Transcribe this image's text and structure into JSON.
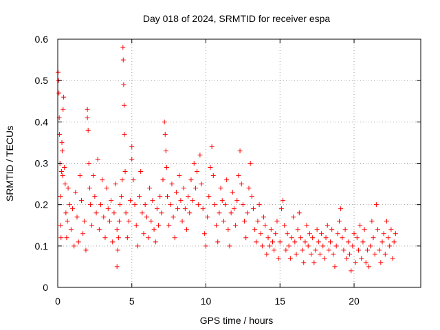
{
  "chart_data": {
    "type": "scatter",
    "title": "Day 018 of 2024, SRMTID for receiver espa",
    "xlabel": "GPS time / hours",
    "ylabel": "SRMTID / TECUs",
    "xlim": [
      0,
      24.5
    ],
    "ylim": [
      0,
      0.6
    ],
    "xticks": [
      0,
      5,
      10,
      15,
      20
    ],
    "yticks": [
      0,
      0.1,
      0.2,
      0.3,
      0.4,
      0.5,
      0.6
    ],
    "xtick_labels": [
      "0",
      "5",
      "10",
      "15",
      "20"
    ],
    "ytick_labels": [
      "0",
      "0.1",
      "0.2",
      "0.3",
      "0.4",
      "0.5",
      "0.6"
    ],
    "grid": true,
    "marker": "+",
    "marker_color": "#ff0000",
    "series": [
      {
        "name": "SRMTID",
        "color": "#ff0000",
        "x": [
          0.02,
          0.05,
          0.08,
          0.1,
          0.12,
          0.15,
          0.18,
          0.2,
          0.22,
          0.25,
          0.28,
          0.3,
          0.33,
          0.36,
          0.4,
          0.45,
          0.5,
          0.55,
          0.6,
          0.65,
          0.7,
          0.8,
          0.9,
          1.0,
          1.1,
          1.2,
          1.3,
          1.4,
          1.5,
          1.6,
          1.7,
          1.8,
          1.9,
          2.0,
          2.0,
          2.05,
          2.1,
          2.15,
          2.2,
          2.3,
          2.4,
          2.5,
          2.6,
          2.7,
          2.8,
          2.9,
          3.0,
          3.1,
          3.2,
          3.3,
          3.4,
          3.5,
          3.6,
          3.7,
          3.8,
          3.9,
          4.0,
          4.0,
          4.05,
          4.1,
          4.15,
          4.2,
          4.3,
          4.35,
          4.4,
          4.42,
          4.45,
          4.48,
          4.5,
          4.55,
          4.6,
          4.7,
          4.8,
          4.9,
          5.0,
          5.0,
          5.1,
          5.2,
          5.3,
          5.4,
          5.5,
          5.6,
          5.7,
          5.8,
          5.9,
          6.0,
          6.1,
          6.2,
          6.3,
          6.4,
          6.5,
          6.6,
          6.7,
          6.8,
          6.9,
          7.0,
          7.1,
          7.2,
          7.25,
          7.3,
          7.35,
          7.4,
          7.5,
          7.6,
          7.7,
          7.8,
          7.9,
          8.0,
          8.1,
          8.2,
          8.3,
          8.4,
          8.5,
          8.6,
          8.7,
          8.8,
          8.9,
          9.0,
          9.1,
          9.2,
          9.3,
          9.4,
          9.5,
          9.6,
          9.7,
          9.8,
          9.9,
          10.0,
          10.1,
          10.2,
          10.3,
          10.4,
          10.5,
          10.6,
          10.7,
          10.8,
          10.9,
          11.0,
          11.1,
          11.2,
          11.3,
          11.4,
          11.5,
          11.6,
          11.7,
          11.8,
          11.9,
          12.0,
          12.1,
          12.2,
          12.3,
          12.4,
          12.5,
          12.6,
          12.7,
          12.8,
          12.9,
          13.0,
          13.1,
          13.2,
          13.3,
          13.4,
          13.5,
          13.6,
          13.7,
          13.8,
          13.9,
          14.0,
          14.1,
          14.2,
          14.3,
          14.4,
          14.5,
          14.6,
          14.7,
          14.8,
          14.9,
          15.0,
          15.1,
          15.2,
          15.3,
          15.4,
          15.5,
          15.6,
          15.7,
          15.8,
          15.9,
          16.0,
          16.1,
          16.2,
          16.3,
          16.4,
          16.5,
          16.6,
          16.7,
          16.8,
          16.9,
          17.0,
          17.1,
          17.2,
          17.3,
          17.4,
          17.5,
          17.6,
          17.7,
          17.8,
          17.9,
          18.0,
          18.1,
          18.2,
          18.3,
          18.4,
          18.5,
          18.6,
          18.7,
          18.8,
          18.9,
          19.0,
          19.1,
          19.2,
          19.3,
          19.4,
          19.5,
          19.6,
          19.7,
          19.8,
          19.9,
          20.0,
          20.1,
          20.2,
          20.3,
          20.4,
          20.5,
          20.6,
          20.7,
          20.8,
          20.9,
          21.0,
          21.1,
          21.2,
          21.3,
          21.4,
          21.5,
          21.6,
          21.7,
          21.8,
          21.9,
          22.0,
          22.1,
          22.2,
          22.3,
          22.4,
          22.5,
          22.6,
          22.7,
          22.8
        ],
        "y": [
          0.52,
          0.5,
          0.47,
          0.41,
          0.37,
          0.3,
          0.22,
          0.15,
          0.12,
          0.28,
          0.35,
          0.33,
          0.27,
          0.43,
          0.46,
          0.29,
          0.25,
          0.18,
          0.12,
          0.16,
          0.24,
          0.2,
          0.14,
          0.19,
          0.1,
          0.23,
          0.17,
          0.11,
          0.27,
          0.21,
          0.13,
          0.16,
          0.09,
          0.43,
          0.41,
          0.38,
          0.3,
          0.24,
          0.2,
          0.15,
          0.27,
          0.22,
          0.18,
          0.31,
          0.14,
          0.2,
          0.26,
          0.17,
          0.12,
          0.24,
          0.19,
          0.16,
          0.21,
          0.11,
          0.18,
          0.25,
          0.14,
          0.05,
          0.09,
          0.12,
          0.16,
          0.2,
          0.22,
          0.26,
          0.58,
          0.55,
          0.49,
          0.44,
          0.37,
          0.28,
          0.18,
          0.12,
          0.16,
          0.21,
          0.34,
          0.31,
          0.26,
          0.2,
          0.15,
          0.1,
          0.22,
          0.28,
          0.18,
          0.13,
          0.2,
          0.17,
          0.12,
          0.24,
          0.16,
          0.21,
          0.14,
          0.11,
          0.19,
          0.15,
          0.22,
          0.18,
          0.26,
          0.4,
          0.37,
          0.33,
          0.29,
          0.22,
          0.15,
          0.2,
          0.25,
          0.17,
          0.12,
          0.23,
          0.19,
          0.27,
          0.21,
          0.16,
          0.24,
          0.19,
          0.14,
          0.22,
          0.18,
          0.26,
          0.21,
          0.3,
          0.24,
          0.28,
          0.2,
          0.32,
          0.25,
          0.19,
          0.13,
          0.1,
          0.17,
          0.22,
          0.29,
          0.34,
          0.27,
          0.2,
          0.15,
          0.11,
          0.18,
          0.24,
          0.21,
          0.16,
          0.2,
          0.26,
          0.14,
          0.1,
          0.18,
          0.23,
          0.19,
          0.15,
          0.21,
          0.27,
          0.33,
          0.25,
          0.2,
          0.16,
          0.12,
          0.18,
          0.24,
          0.3,
          0.22,
          0.19,
          0.14,
          0.11,
          0.16,
          0.2,
          0.13,
          0.1,
          0.17,
          0.15,
          0.08,
          0.12,
          0.1,
          0.14,
          0.11,
          0.09,
          0.13,
          0.16,
          0.07,
          0.11,
          0.19,
          0.21,
          0.15,
          0.09,
          0.13,
          0.1,
          0.07,
          0.12,
          0.17,
          0.11,
          0.08,
          0.14,
          0.18,
          0.12,
          0.09,
          0.06,
          0.11,
          0.15,
          0.1,
          0.13,
          0.08,
          0.12,
          0.06,
          0.09,
          0.14,
          0.11,
          0.08,
          0.13,
          0.1,
          0.07,
          0.12,
          0.15,
          0.09,
          0.11,
          0.14,
          0.08,
          0.05,
          0.1,
          0.13,
          0.16,
          0.19,
          0.12,
          0.09,
          0.14,
          0.07,
          0.11,
          0.08,
          0.04,
          0.1,
          0.13,
          0.06,
          0.12,
          0.09,
          0.15,
          0.07,
          0.11,
          0.14,
          0.06,
          0.09,
          0.05,
          0.1,
          0.16,
          0.12,
          0.08,
          0.2,
          0.14,
          0.09,
          0.06,
          0.11,
          0.13,
          0.08,
          0.16,
          0.12,
          0.1,
          0.14,
          0.07,
          0.11,
          0.13
        ]
      }
    ]
  }
}
